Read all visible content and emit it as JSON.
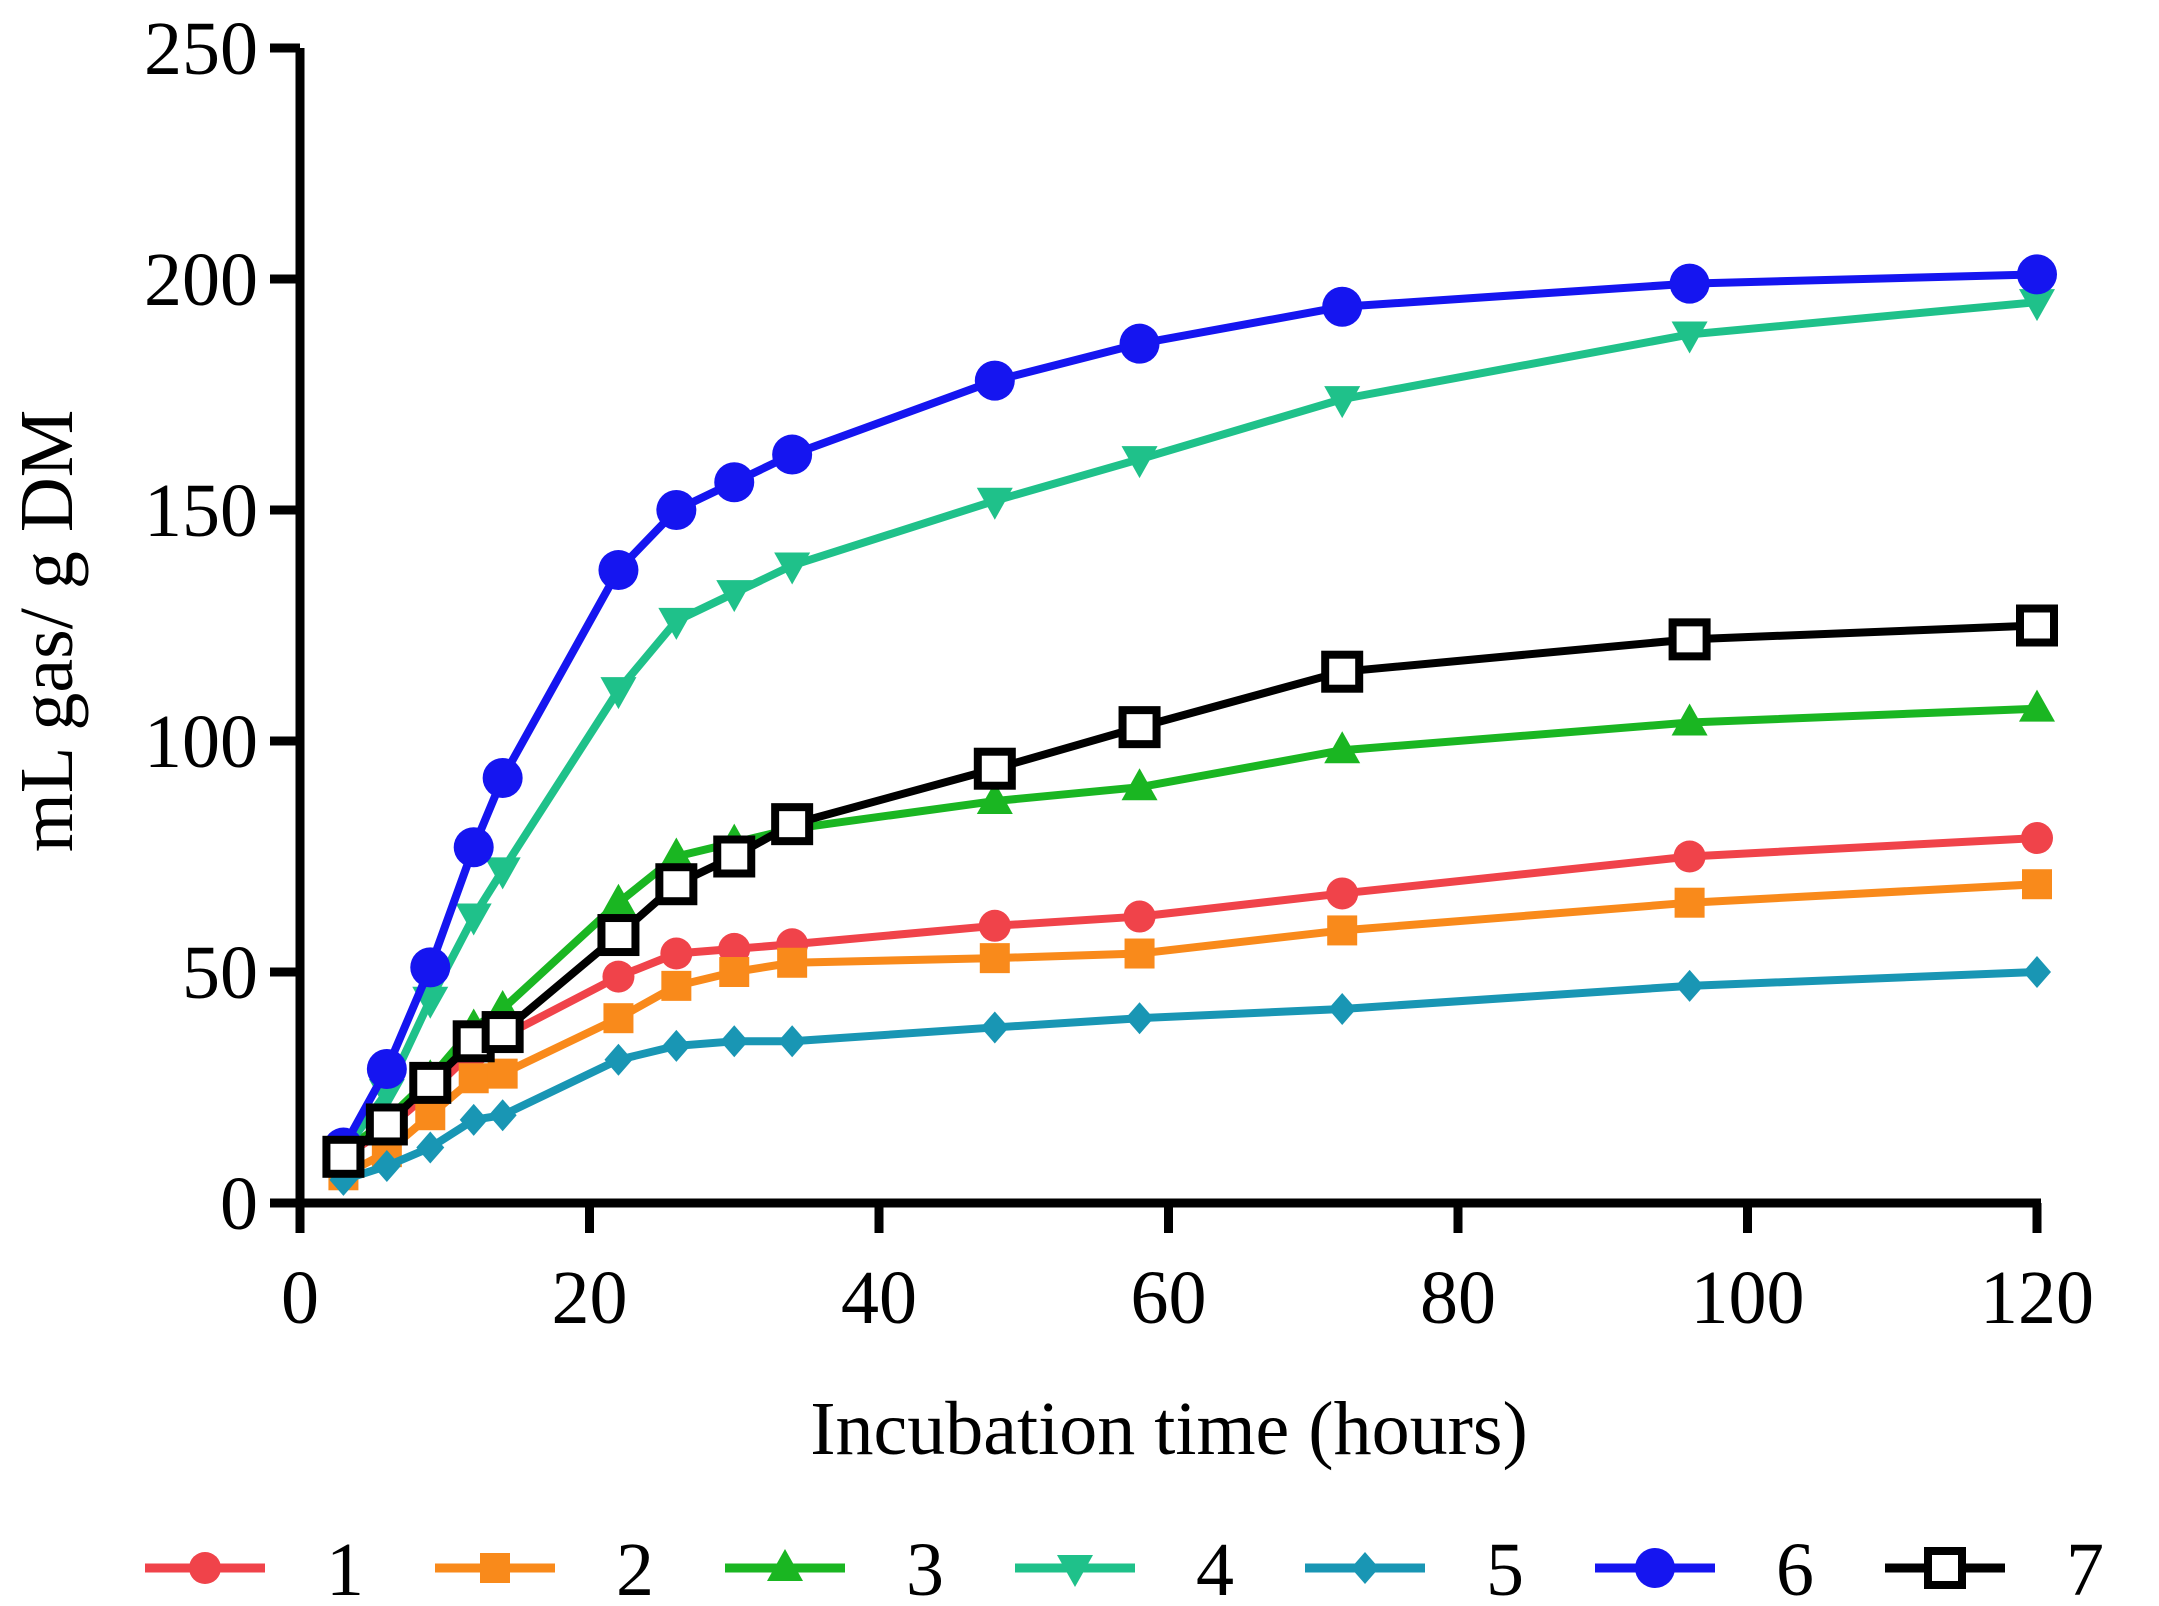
{
  "chart_data": {
    "type": "line",
    "title": "",
    "xlabel": "Incubation time (hours)",
    "ylabel": "mL gas/ g DM",
    "xlim": [
      0,
      120
    ],
    "ylim": [
      0,
      250
    ],
    "xticks": [
      0,
      20,
      40,
      60,
      80,
      100,
      120
    ],
    "yticks": [
      0,
      50,
      100,
      150,
      200,
      250
    ],
    "grid": false,
    "legend_position": "bottom",
    "x": [
      3,
      6,
      9,
      12,
      14,
      22,
      26,
      30,
      34,
      48,
      58,
      72,
      96,
      120
    ],
    "series": [
      {
        "name": "1",
        "color": "#f0434a",
        "marker": "circle",
        "values": [
          10,
          16,
          24,
          33,
          36,
          49,
          54,
          55,
          56,
          60,
          62,
          67,
          75,
          79
        ]
      },
      {
        "name": "2",
        "color": "#f98a1b",
        "marker": "square",
        "values": [
          6,
          11,
          19,
          27,
          28,
          40,
          47,
          50,
          52,
          53,
          54,
          59,
          65,
          69
        ]
      },
      {
        "name": "3",
        "color": "#1ab622",
        "marker": "triangle-up",
        "values": [
          11,
          18,
          27,
          38,
          42,
          65,
          75,
          78,
          81,
          87,
          90,
          98,
          104,
          107
        ]
      },
      {
        "name": "4",
        "color": "#1fc18a",
        "marker": "triangle-down",
        "values": [
          11,
          24,
          44,
          62,
          72,
          111,
          126,
          132,
          138,
          152,
          161,
          174,
          188,
          195
        ]
      },
      {
        "name": "5",
        "color": "#1996b4",
        "marker": "diamond",
        "values": [
          5,
          8,
          12,
          18,
          19,
          31,
          34,
          35,
          35,
          38,
          40,
          42,
          47,
          50
        ]
      },
      {
        "name": "6",
        "color": "#1515f0",
        "marker": "circle-large",
        "values": [
          12,
          29,
          51,
          77,
          92,
          137,
          150,
          156,
          162,
          178,
          186,
          194,
          199,
          201
        ]
      },
      {
        "name": "7",
        "color": "#000000",
        "marker": "square-open",
        "values": [
          10,
          17,
          26,
          35,
          37,
          58,
          69,
          75,
          82,
          94,
          103,
          115,
          122,
          125
        ]
      }
    ]
  }
}
